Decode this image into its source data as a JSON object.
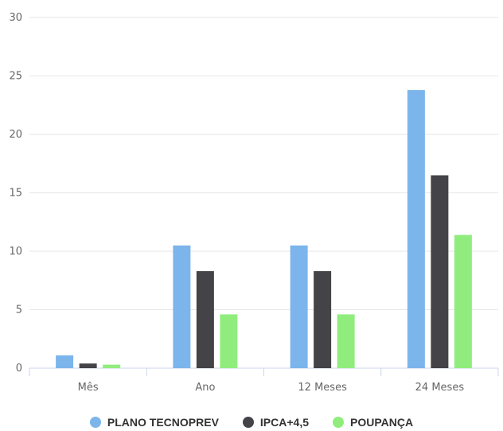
{
  "chart_data": {
    "type": "bar",
    "categories": [
      "Mês",
      "Ano",
      "12 Meses",
      "24 Meses"
    ],
    "series": [
      {
        "name": "PLANO TECNOPREV",
        "color": "#7cb5ec",
        "values": [
          1.1,
          10.5,
          10.5,
          23.8
        ]
      },
      {
        "name": "IPCA+4,5",
        "color": "#434348",
        "values": [
          0.4,
          8.3,
          8.3,
          16.5
        ]
      },
      {
        "name": "POUPANÇA",
        "color": "#90ed7d",
        "values": [
          0.3,
          4.6,
          4.6,
          11.4
        ]
      }
    ],
    "title": "",
    "xlabel": "",
    "ylabel": "",
    "ylim": [
      0,
      30
    ],
    "yticks": [
      "0",
      "5",
      "10",
      "15",
      "20",
      "25",
      "30"
    ],
    "grid": true,
    "legend_position": "bottom"
  }
}
